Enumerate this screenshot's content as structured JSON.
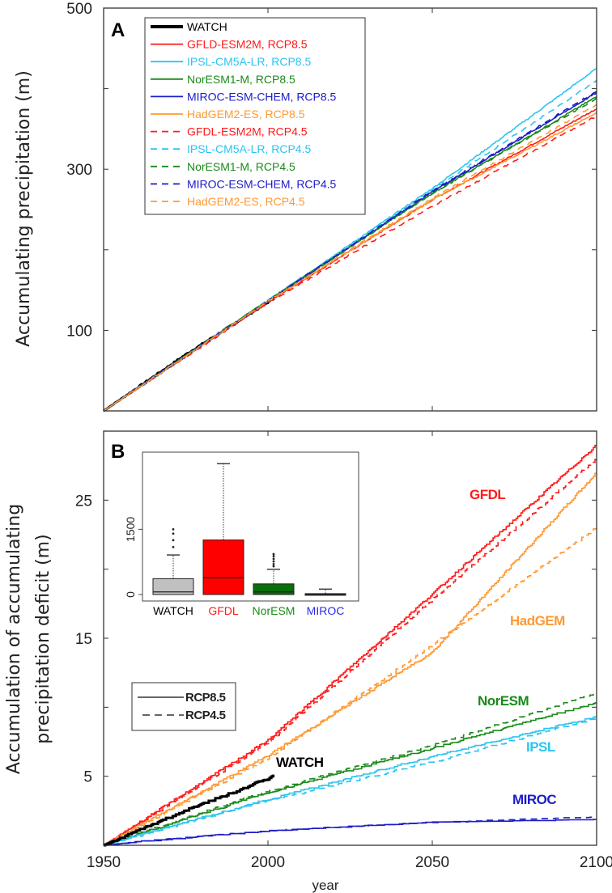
{
  "colors": {
    "watch": "#000000",
    "gfdl": "#ff1a1a",
    "ipsl": "#2cc3f0",
    "noresm": "#1a8a1a",
    "miroc": "#1c1cc8",
    "hadgem": "#ff9933"
  },
  "chart_data": [
    {
      "type": "line",
      "panel_label": "A",
      "title": "",
      "xlabel": "",
      "ylabel": "Accumulating precipitation (m)",
      "xlim": [
        1950,
        2100
      ],
      "ylim": [
        0,
        500
      ],
      "xticks": [
        1950,
        2000,
        2050,
        2100
      ],
      "yticks": [
        100,
        200,
        300,
        400,
        500
      ],
      "ytick_labels": [
        "100",
        "300",
        "500"
      ],
      "legend_position": "top-left",
      "series": [
        {
          "name": "WATCH",
          "color": "watch",
          "dash": false,
          "thick": true,
          "x": [
            1950,
            1975,
            2002
          ],
          "y": [
            0,
            70,
            140
          ]
        },
        {
          "name": "GFLD-ESM2M, RCP8.5",
          "color": "gfdl",
          "dash": false,
          "x": [
            1950,
            2000,
            2050,
            2100
          ],
          "y": [
            0,
            135,
            262,
            375
          ]
        },
        {
          "name": "IPSL-CM5A-LR, RCP8.5",
          "color": "ipsl",
          "dash": false,
          "x": [
            1950,
            2000,
            2050,
            2100
          ],
          "y": [
            0,
            137,
            276,
            425
          ]
        },
        {
          "name": "NorESM1-M, RCP8.5",
          "color": "noresm",
          "dash": false,
          "x": [
            1950,
            2000,
            2050,
            2100
          ],
          "y": [
            0,
            137,
            270,
            390
          ]
        },
        {
          "name": "MIROC-ESM-CHEM, RCP8.5",
          "color": "miroc",
          "dash": false,
          "x": [
            1950,
            2000,
            2050,
            2100
          ],
          "y": [
            0,
            136,
            272,
            395
          ]
        },
        {
          "name": "HadGEM2-ES, RCP8.5",
          "color": "hadgem",
          "dash": false,
          "x": [
            1950,
            2000,
            2050,
            2100
          ],
          "y": [
            0,
            136,
            262,
            370
          ]
        },
        {
          "name": "GFDL-ESM2M, RCP4.5",
          "color": "gfdl",
          "dash": true,
          "x": [
            1950,
            2000,
            2050,
            2100
          ],
          "y": [
            0,
            134,
            254,
            366
          ]
        },
        {
          "name": "IPSL-CM5A-LR, RCP4.5",
          "color": "ipsl",
          "dash": true,
          "x": [
            1950,
            2000,
            2050,
            2100
          ],
          "y": [
            0,
            137,
            274,
            410
          ]
        },
        {
          "name": "NorESM1-M, RCP4.5",
          "color": "noresm",
          "dash": true,
          "x": [
            1950,
            2000,
            2050,
            2100
          ],
          "y": [
            0,
            137,
            270,
            388
          ]
        },
        {
          "name": "MIROC-ESM-CHEM, RCP4.5",
          "color": "miroc",
          "dash": true,
          "x": [
            1950,
            2000,
            2050,
            2100
          ],
          "y": [
            0,
            136,
            273,
            397
          ]
        },
        {
          "name": "HadGEM2-ES, RCP4.5",
          "color": "hadgem",
          "dash": true,
          "x": [
            1950,
            2000,
            2050,
            2100
          ],
          "y": [
            0,
            136,
            264,
            380
          ]
        }
      ]
    },
    {
      "type": "line",
      "panel_label": "B",
      "title": "",
      "xlabel": "year",
      "ylabel": [
        "Accumulation of accumulating",
        "precipitation deficit (m)"
      ],
      "xlim": [
        1950,
        2100
      ],
      "ylim": [
        0,
        30
      ],
      "xticks": [
        1950,
        2000,
        2050,
        2100
      ],
      "xtick_labels": [
        "1950",
        "2000",
        "2050",
        "2100"
      ],
      "yticks": [
        5,
        10,
        15,
        20,
        25
      ],
      "ytick_labels": [
        "5",
        "15",
        "25"
      ],
      "legend_position": "middle-left",
      "legend": [
        {
          "label": "RCP8.5",
          "dash": false
        },
        {
          "label": "RCP4.5",
          "dash": true
        }
      ],
      "annotations": [
        {
          "text": "GFDL",
          "color": "gfdl"
        },
        {
          "text": "HadGEM",
          "color": "hadgem"
        },
        {
          "text": "NorESM",
          "color": "noresm"
        },
        {
          "text": "IPSL",
          "color": "ipsl"
        },
        {
          "text": "MIROC",
          "color": "miroc"
        },
        {
          "text": "WATCH",
          "color": "watch"
        }
      ],
      "series": [
        {
          "name": "GFDL RCP8.5",
          "color": "gfdl",
          "dash": false,
          "x": [
            1950,
            2000,
            2050,
            2100
          ],
          "y": [
            0,
            7.6,
            18.2,
            29.0
          ]
        },
        {
          "name": "GFDL RCP4.5",
          "color": "gfdl",
          "dash": true,
          "x": [
            1950,
            2000,
            2050,
            2100
          ],
          "y": [
            0,
            7.4,
            17.8,
            28.0
          ]
        },
        {
          "name": "HadGEM RCP8.5",
          "color": "hadgem",
          "dash": false,
          "x": [
            1950,
            2000,
            2050,
            2100
          ],
          "y": [
            0,
            6.5,
            14.0,
            27.0
          ]
        },
        {
          "name": "HadGEM RCP4.5",
          "color": "hadgem",
          "dash": true,
          "x": [
            1950,
            2000,
            2050,
            2100
          ],
          "y": [
            0,
            6.3,
            14.5,
            23.0
          ]
        },
        {
          "name": "NorESM RCP8.5",
          "color": "noresm",
          "dash": false,
          "x": [
            1950,
            2000,
            2050,
            2100
          ],
          "y": [
            0,
            3.8,
            7.0,
            10.3
          ]
        },
        {
          "name": "NorESM RCP4.5",
          "color": "noresm",
          "dash": true,
          "x": [
            1950,
            2000,
            2050,
            2100
          ],
          "y": [
            0,
            3.9,
            7.2,
            11.0
          ]
        },
        {
          "name": "IPSL RCP8.5",
          "color": "ipsl",
          "dash": false,
          "x": [
            1950,
            2000,
            2050,
            2100
          ],
          "y": [
            0,
            3.3,
            6.4,
            9.3
          ]
        },
        {
          "name": "IPSL RCP4.5",
          "color": "ipsl",
          "dash": true,
          "x": [
            1950,
            2000,
            2050,
            2100
          ],
          "y": [
            0,
            3.2,
            6.0,
            9.2
          ]
        },
        {
          "name": "MIROC RCP8.5",
          "color": "miroc",
          "dash": false,
          "x": [
            1950,
            2000,
            2050,
            2100
          ],
          "y": [
            0,
            1.0,
            1.6,
            1.8
          ]
        },
        {
          "name": "MIROC RCP4.5",
          "color": "miroc",
          "dash": true,
          "x": [
            1950,
            2000,
            2050,
            2100
          ],
          "y": [
            0,
            1.0,
            1.6,
            2.0
          ]
        },
        {
          "name": "WATCH",
          "color": "watch",
          "dash": false,
          "thick": true,
          "x": [
            1950,
            1975,
            2002
          ],
          "y": [
            0,
            2.5,
            5.0
          ]
        }
      ],
      "inset": {
        "type": "box",
        "ylim": [
          0,
          3200
        ],
        "ytick_labels": [
          "0",
          "1500"
        ],
        "yticks": [
          0,
          1500
        ],
        "boxes": [
          {
            "label": "WATCH",
            "color": "#c0c0c0",
            "label_color": "#000000",
            "q1": 0,
            "median": 60,
            "q3": 365,
            "whisker_low": 0,
            "whisker_high": 910,
            "outliers": [
              1090,
              1250,
              1400,
              1500
            ]
          },
          {
            "label": "GFDL",
            "color": "#ff0000",
            "label_color": "#ff1a1a",
            "q1": 0,
            "median": 385,
            "q3": 1255,
            "whisker_low": 0,
            "whisker_high": 3010,
            "outliers": []
          },
          {
            "label": "NorESM",
            "color": "#0a6e0a",
            "label_color": "#1a8a1a",
            "q1": 0,
            "median": 60,
            "q3": 245,
            "whisker_low": 0,
            "whisker_high": 580,
            "outliers": [
              650,
              700,
              760,
              820,
              880,
              930
            ]
          },
          {
            "label": "MIROC",
            "color": "#333333",
            "label_color": "#2a2af0",
            "q1": 0,
            "median": 5,
            "q3": 20,
            "whisker_low": 0,
            "whisker_high": 125,
            "outliers": []
          }
        ]
      }
    }
  ]
}
